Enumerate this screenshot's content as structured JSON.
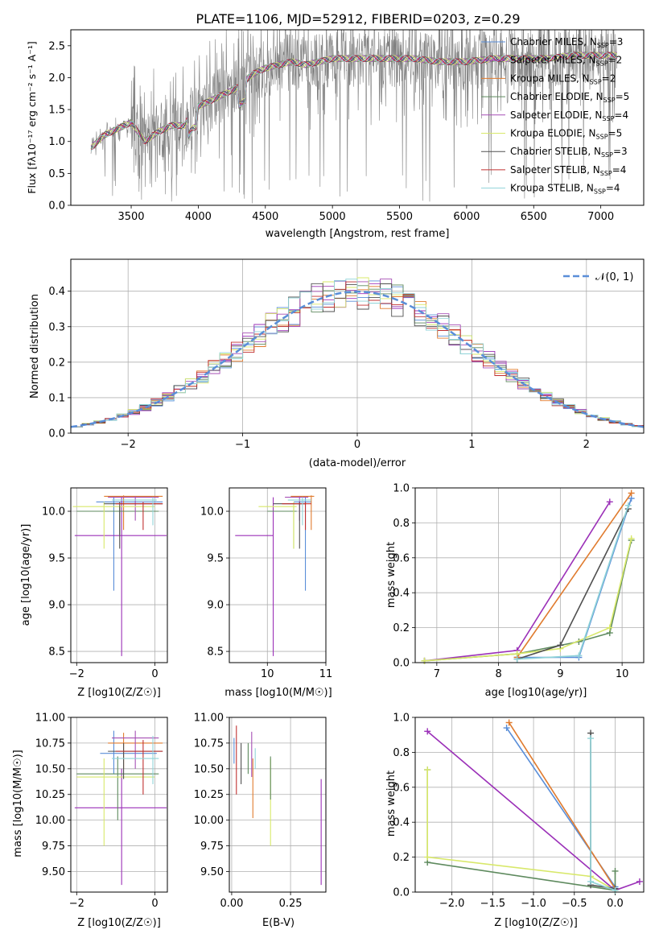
{
  "figure_title": "PLATE=1106, MJD=52912, FIBERID=0203, z=0.29",
  "colors": {
    "models": [
      "#5a8ed8",
      "#9b30b8",
      "#e07b2e",
      "#5e8a5e",
      "#a64fb5",
      "#d8e86a",
      "#505050",
      "#c03030",
      "#8fd3d8"
    ],
    "gray": "#808080",
    "normal_curve": "#5a8ed8",
    "grid": "#b0b0b0"
  },
  "chart_data": [
    {
      "id": "spectrum",
      "type": "line",
      "xlabel": "wavelength [Angstrom, rest frame]",
      "ylabel": "Flux [f_λ 10^-17 erg cm^-2 s^-1 A^-1]",
      "xlim": [
        3050,
        7320
      ],
      "ylim": [
        0,
        2.75
      ],
      "xticks": [
        "3500",
        "4000",
        "4500",
        "5000",
        "5500",
        "6000",
        "6500",
        "7000"
      ],
      "yticks": [
        "0.0",
        "0.5",
        "1.0",
        "1.5",
        "2.0",
        "2.5"
      ],
      "grid": false,
      "legend_placement": "upper-right",
      "legend": [
        {
          "imf": "Chabrier",
          "lib": "MILES",
          "nssp": "3"
        },
        {
          "imf": "Salpeter",
          "lib": "MILES",
          "nssp": "2"
        },
        {
          "imf": "Kroupa",
          "lib": "MILES",
          "nssp": "2"
        },
        {
          "imf": "Chabrier",
          "lib": "ELODIE",
          "nssp": "5"
        },
        {
          "imf": "Salpeter",
          "lib": "ELODIE",
          "nssp": "4"
        },
        {
          "imf": "Kroupa",
          "lib": "ELODIE",
          "nssp": "5"
        },
        {
          "imf": "Chabrier",
          "lib": "STELIB",
          "nssp": "3"
        },
        {
          "imf": "Salpeter",
          "lib": "STELIB",
          "nssp": "4"
        },
        {
          "imf": "Kroupa",
          "lib": "STELIB",
          "nssp": "4"
        }
      ],
      "wavelength_range": [
        3200,
        7120
      ],
      "continuum": [
        [
          3200,
          0.9
        ],
        [
          3300,
          1.1
        ],
        [
          3400,
          1.2
        ],
        [
          3500,
          1.3
        ],
        [
          3600,
          1.0
        ],
        [
          3700,
          1.15
        ],
        [
          3800,
          1.25
        ],
        [
          3900,
          1.25
        ],
        [
          3950,
          1.5
        ],
        [
          4000,
          1.55
        ],
        [
          4100,
          1.65
        ],
        [
          4200,
          1.75
        ],
        [
          4300,
          1.85
        ],
        [
          4400,
          2.05
        ],
        [
          4500,
          2.15
        ],
        [
          4600,
          2.2
        ],
        [
          4700,
          2.25
        ],
        [
          4800,
          2.2
        ],
        [
          4900,
          2.25
        ],
        [
          5000,
          2.3
        ],
        [
          5200,
          2.3
        ],
        [
          5400,
          2.3
        ],
        [
          5600,
          2.3
        ],
        [
          5800,
          2.25
        ],
        [
          6000,
          2.25
        ],
        [
          6200,
          2.3
        ],
        [
          6400,
          2.3
        ],
        [
          6600,
          2.3
        ],
        [
          6800,
          2.35
        ],
        [
          7100,
          2.35
        ]
      ]
    },
    {
      "id": "residual-histogram",
      "type": "line",
      "xlabel": "(data-model)/error",
      "ylabel": "Normed distribution",
      "xlim": [
        -2.5,
        2.5
      ],
      "ylim": [
        0,
        0.49
      ],
      "xticks": [
        "−2",
        "−1",
        "0",
        "1",
        "2"
      ],
      "yticks": [
        "0.0",
        "0.1",
        "0.2",
        "0.3",
        "0.4"
      ],
      "grid": true,
      "legend": [
        "𝒩(0, 1)"
      ],
      "legend_placement": "upper-right",
      "bin_width": 0.1
    },
    {
      "id": "age-vs-Z",
      "type": "scatter",
      "xlabel": "Z [log10(Z/Z☉)]",
      "ylabel": "age [log10(age/yr)]",
      "xlim": [
        -2.15,
        0.32
      ],
      "ylim": [
        8.38,
        10.25
      ],
      "xticks": [
        {
          "v": -2,
          "t": "−2"
        },
        {
          "v": 0,
          "t": "0"
        }
      ],
      "yticks": [
        {
          "v": 8.5,
          "t": "8.5"
        },
        {
          "v": 9.0,
          "t": "9.0"
        },
        {
          "v": 9.5,
          "t": "9.5"
        },
        {
          "v": 10.0,
          "t": "10.0"
        }
      ],
      "grid": true,
      "points": [
        {
          "c": 0,
          "x": -1.05,
          "xe": [
            -1.5,
            0.2
          ],
          "y": 10.1,
          "ye": [
            9.15,
            10.15
          ]
        },
        {
          "c": 1,
          "x": -0.85,
          "xe": [
            -2.05,
            0.3
          ],
          "y": 9.74,
          "ye": [
            8.45,
            10.15
          ]
        },
        {
          "c": 2,
          "x": -0.8,
          "xe": [
            -1.3,
            0.2
          ],
          "y": 10.16,
          "ye": [
            9.8,
            10.17
          ]
        },
        {
          "c": 3,
          "x": -0.9,
          "xe": [
            -2.0,
            0.1
          ],
          "y": 10.0,
          "ye": [
            9.75,
            10.05
          ]
        },
        {
          "c": 4,
          "x": -0.5,
          "xe": [
            -1.2,
            0.1
          ],
          "y": 10.15,
          "ye": [
            9.9,
            10.16
          ]
        },
        {
          "c": 5,
          "x": -1.3,
          "xe": [
            -2.1,
            0.0
          ],
          "y": 10.05,
          "ye": [
            9.6,
            10.1
          ]
        },
        {
          "c": 6,
          "x": -0.9,
          "xe": [
            -1.3,
            0.2
          ],
          "y": 10.08,
          "ye": [
            9.6,
            10.1
          ]
        },
        {
          "c": 7,
          "x": -0.3,
          "xe": [
            -1.0,
            0.2
          ],
          "y": 10.08,
          "ye": [
            9.8,
            10.1
          ]
        },
        {
          "c": 8,
          "x": -0.05,
          "xe": [
            -1.1,
            0.05
          ],
          "y": 10.12,
          "ye": [
            9.85,
            10.15
          ]
        }
      ]
    },
    {
      "id": "age-vs-mass",
      "type": "scatter",
      "xlabel": "mass [log10(M/M☉)]",
      "ylabel": "",
      "xlim": [
        9.35,
        11.0
      ],
      "ylim": [
        8.38,
        10.25
      ],
      "xticks": [
        {
          "v": 10,
          "t": "10"
        },
        {
          "v": 11,
          "t": "11"
        }
      ],
      "yticks": [
        {
          "v": 8.5,
          "t": "8.5"
        },
        {
          "v": 9.0,
          "t": "9.0"
        },
        {
          "v": 9.5,
          "t": "9.5"
        },
        {
          "v": 10.0,
          "t": "10.0"
        }
      ],
      "grid": true,
      "points": [
        {
          "c": 0,
          "x": 10.65,
          "xe": [
            10.45,
            10.75
          ],
          "y": 10.1,
          "ye": [
            9.15,
            10.15
          ]
        },
        {
          "c": 1,
          "x": 10.1,
          "xe": [
            9.45,
            10.1
          ],
          "y": 9.74,
          "ye": [
            8.45,
            10.15
          ]
        },
        {
          "c": 2,
          "x": 10.75,
          "xe": [
            10.4,
            10.8
          ],
          "y": 10.16,
          "ye": [
            9.8,
            10.17
          ]
        },
        {
          "c": 3,
          "x": 10.45,
          "xe": [
            10.0,
            10.5
          ],
          "y": 10.0,
          "ye": [
            9.6,
            10.05
          ]
        },
        {
          "c": 4,
          "x": 10.55,
          "xe": [
            10.3,
            10.7
          ],
          "y": 10.15,
          "ye": [
            9.9,
            10.16
          ]
        },
        {
          "c": 5,
          "x": 10.45,
          "xe": [
            9.85,
            10.5
          ],
          "y": 10.05,
          "ye": [
            9.6,
            10.1
          ]
        },
        {
          "c": 6,
          "x": 10.55,
          "xe": [
            10.1,
            10.65
          ],
          "y": 10.08,
          "ye": [
            9.6,
            10.1
          ]
        },
        {
          "c": 7,
          "x": 10.65,
          "xe": [
            10.25,
            10.75
          ],
          "y": 10.08,
          "ye": [
            9.8,
            10.1
          ]
        },
        {
          "c": 8,
          "x": 10.6,
          "xe": [
            10.35,
            10.75
          ],
          "y": 10.12,
          "ye": [
            9.85,
            10.15
          ]
        }
      ]
    },
    {
      "id": "mass-weight-vs-age",
      "type": "line",
      "xlabel": "age [log10(age/yr)]",
      "ylabel": "mass weight",
      "xlim": [
        6.65,
        10.35
      ],
      "ylim": [
        0,
        1
      ],
      "xticks": [
        {
          "v": 7,
          "t": "7"
        },
        {
          "v": 8,
          "t": "8"
        },
        {
          "v": 9,
          "t": "9"
        },
        {
          "v": 10,
          "t": "10"
        }
      ],
      "yticks": [
        {
          "v": 0,
          "t": "0.0"
        },
        {
          "v": 0.2,
          "t": "0.2"
        },
        {
          "v": 0.4,
          "t": "0.4"
        },
        {
          "v": 0.6,
          "t": "0.6"
        },
        {
          "v": 0.8,
          "t": "0.8"
        },
        {
          "v": 1.0,
          "t": "1.0"
        }
      ],
      "grid": true,
      "series": [
        {
          "c": 0,
          "x": [
            8.3,
            9.3,
            10.15
          ],
          "y": [
            0.03,
            0.03,
            0.94
          ]
        },
        {
          "c": 1,
          "x": [
            6.8,
            8.3,
            9.8
          ],
          "y": [
            0.01,
            0.07,
            0.92
          ]
        },
        {
          "c": 2,
          "x": [
            8.3,
            10.15
          ],
          "y": [
            0.03,
            0.97
          ]
        },
        {
          "c": 3,
          "x": [
            6.8,
            8.3,
            9.3,
            9.8,
            10.15
          ],
          "y": [
            0.01,
            0.05,
            0.12,
            0.17,
            0.7
          ]
        },
        {
          "c": 5,
          "x": [
            6.8,
            8.3,
            9.0,
            9.8,
            10.15
          ],
          "y": [
            0.01,
            0.05,
            0.08,
            0.2,
            0.71
          ]
        },
        {
          "c": 6,
          "x": [
            8.3,
            9.0,
            10.1
          ],
          "y": [
            0.02,
            0.1,
            0.88
          ]
        },
        {
          "c": 8,
          "x": [
            8.3,
            9.3,
            10.1
          ],
          "y": [
            0.02,
            0.04,
            0.9
          ]
        }
      ]
    },
    {
      "id": "mass-vs-Z",
      "type": "scatter",
      "xlabel": "Z [log10(Z/Z☉)]",
      "ylabel": "mass [log10(M/M☉)]",
      "xlim": [
        -2.15,
        0.32
      ],
      "ylim": [
        9.3,
        11.0
      ],
      "xticks": [
        {
          "v": -2,
          "t": "−2"
        },
        {
          "v": 0,
          "t": "0"
        }
      ],
      "yticks": [
        {
          "v": 9.5,
          "t": "9.50"
        },
        {
          "v": 9.75,
          "t": "9.75"
        },
        {
          "v": 10.0,
          "t": "10.00"
        },
        {
          "v": 10.25,
          "t": "10.25"
        },
        {
          "v": 10.5,
          "t": "10.50"
        },
        {
          "v": 10.75,
          "t": "10.75"
        },
        {
          "v": 11.0,
          "t": "11.00"
        }
      ],
      "grid": true,
      "points": [
        {
          "c": 0,
          "x": -1.05,
          "xe": [
            -1.4,
            0.05
          ],
          "y": 10.65,
          "ye": [
            10.45,
            10.87
          ]
        },
        {
          "c": 1,
          "x": -0.85,
          "xe": [
            -2.05,
            0.3
          ],
          "y": 10.12,
          "ye": [
            9.37,
            10.5
          ]
        },
        {
          "c": 2,
          "x": -0.8,
          "xe": [
            -1.2,
            0.2
          ],
          "y": 10.75,
          "ye": [
            10.5,
            10.85
          ]
        },
        {
          "c": 3,
          "x": -0.95,
          "xe": [
            -2.0,
            0.1
          ],
          "y": 10.45,
          "ye": [
            10.0,
            10.62
          ]
        },
        {
          "c": 4,
          "x": -0.5,
          "xe": [
            -1.1,
            0.1
          ],
          "y": 10.8,
          "ye": [
            10.5,
            10.87
          ]
        },
        {
          "c": 5,
          "x": -1.3,
          "xe": [
            -2.0,
            0.0
          ],
          "y": 10.42,
          "ye": [
            9.75,
            10.6
          ]
        },
        {
          "c": 6,
          "x": -0.8,
          "xe": [
            -1.2,
            0.2
          ],
          "y": 10.67,
          "ye": [
            10.4,
            10.75
          ]
        },
        {
          "c": 7,
          "x": -0.3,
          "xe": [
            -1.0,
            0.2
          ],
          "y": 10.67,
          "ye": [
            10.25,
            10.78
          ]
        },
        {
          "c": 8,
          "x": -0.05,
          "xe": [
            -1.1,
            0.1
          ],
          "y": 10.6,
          "ye": [
            10.35,
            10.82
          ]
        }
      ]
    },
    {
      "id": "EBV",
      "type": "scatter",
      "xlabel": "E(B-V)",
      "ylabel": "",
      "xlim": [
        -0.01,
        0.4
      ],
      "ylim": [
        9.3,
        11.0
      ],
      "xticks": [
        {
          "v": 0,
          "t": "0.00"
        },
        {
          "v": 0.25,
          "t": "0.25"
        }
      ],
      "yticks": [
        {
          "v": 9.5,
          "t": "9.50"
        },
        {
          "v": 9.75,
          "t": "9.75"
        },
        {
          "v": 10.0,
          "t": "10.00"
        },
        {
          "v": 10.25,
          "t": "10.25"
        },
        {
          "v": 10.5,
          "t": "10.50"
        },
        {
          "v": 10.75,
          "t": "10.75"
        },
        {
          "v": 11.0,
          "t": "11.00"
        }
      ],
      "grid": true,
      "points": [
        {
          "c": 0,
          "x": 0.01,
          "ye": [
            10.55,
            10.8
          ]
        },
        {
          "c": 7,
          "x": 0.02,
          "ye": [
            10.25,
            10.92
          ]
        },
        {
          "c": 6,
          "x": 0.04,
          "ye": [
            10.35,
            10.75
          ]
        },
        {
          "c": 3,
          "x": 0.07,
          "ye": [
            10.45,
            10.75
          ]
        },
        {
          "c": 4,
          "x": 0.085,
          "ye": [
            10.42,
            10.86
          ]
        },
        {
          "c": 2,
          "x": 0.09,
          "ye": [
            10.02,
            10.6
          ]
        },
        {
          "c": 8,
          "x": 0.1,
          "ye": [
            10.5,
            10.7
          ]
        },
        {
          "c": 5,
          "x": 0.165,
          "ye": [
            9.75,
            10.6
          ]
        },
        {
          "c": 3,
          "x": 0.165,
          "ye": [
            10.2,
            10.62
          ]
        },
        {
          "c": 1,
          "x": 0.38,
          "ye": [
            9.37,
            10.4
          ]
        }
      ]
    },
    {
      "id": "mass-weight-vs-Z",
      "type": "line",
      "xlabel": "Z [log10(Z/Z☉)]",
      "ylabel": "mass weight",
      "xlim": [
        -2.45,
        0.35
      ],
      "ylim": [
        0,
        1
      ],
      "xticks": [
        {
          "v": -2,
          "t": "−2.0"
        },
        {
          "v": -1.5,
          "t": "−1.5"
        },
        {
          "v": -1,
          "t": "−1.0"
        },
        {
          "v": -0.5,
          "t": "−0.5"
        },
        {
          "v": 0,
          "t": "0.0"
        }
      ],
      "yticks": [
        {
          "v": 0,
          "t": "0.0"
        },
        {
          "v": 0.2,
          "t": "0.2"
        },
        {
          "v": 0.4,
          "t": "0.4"
        },
        {
          "v": 0.6,
          "t": "0.6"
        },
        {
          "v": 0.8,
          "t": "0.8"
        },
        {
          "v": 1.0,
          "t": "1.0"
        }
      ],
      "grid": true,
      "series": [
        {
          "c": 0,
          "x": [
            -1.33,
            0.0
          ],
          "y": [
            0.94,
            0.03
          ]
        },
        {
          "c": 1,
          "x": [
            -2.3,
            0.0,
            0.3
          ],
          "y": [
            0.92,
            0.01,
            0.06
          ]
        },
        {
          "c": 2,
          "x": [
            -1.3,
            0.0
          ],
          "y": [
            0.97,
            0.02
          ]
        },
        {
          "c": 3,
          "x": [
            -2.3,
            -2.3,
            0.0,
            0.0
          ],
          "y": [
            0.7,
            0.17,
            0.01,
            0.12
          ]
        },
        {
          "c": 5,
          "x": [
            -2.3,
            -2.3,
            -0.3,
            0.0
          ],
          "y": [
            0.7,
            0.2,
            0.09,
            0.01
          ]
        },
        {
          "c": 6,
          "x": [
            -0.3,
            -0.3,
            0.0
          ],
          "y": [
            0.91,
            0.04,
            0.02
          ]
        },
        {
          "c": 8,
          "x": [
            -0.3,
            -0.3,
            0.0
          ],
          "y": [
            0.88,
            0.06,
            0.01
          ]
        }
      ]
    }
  ]
}
